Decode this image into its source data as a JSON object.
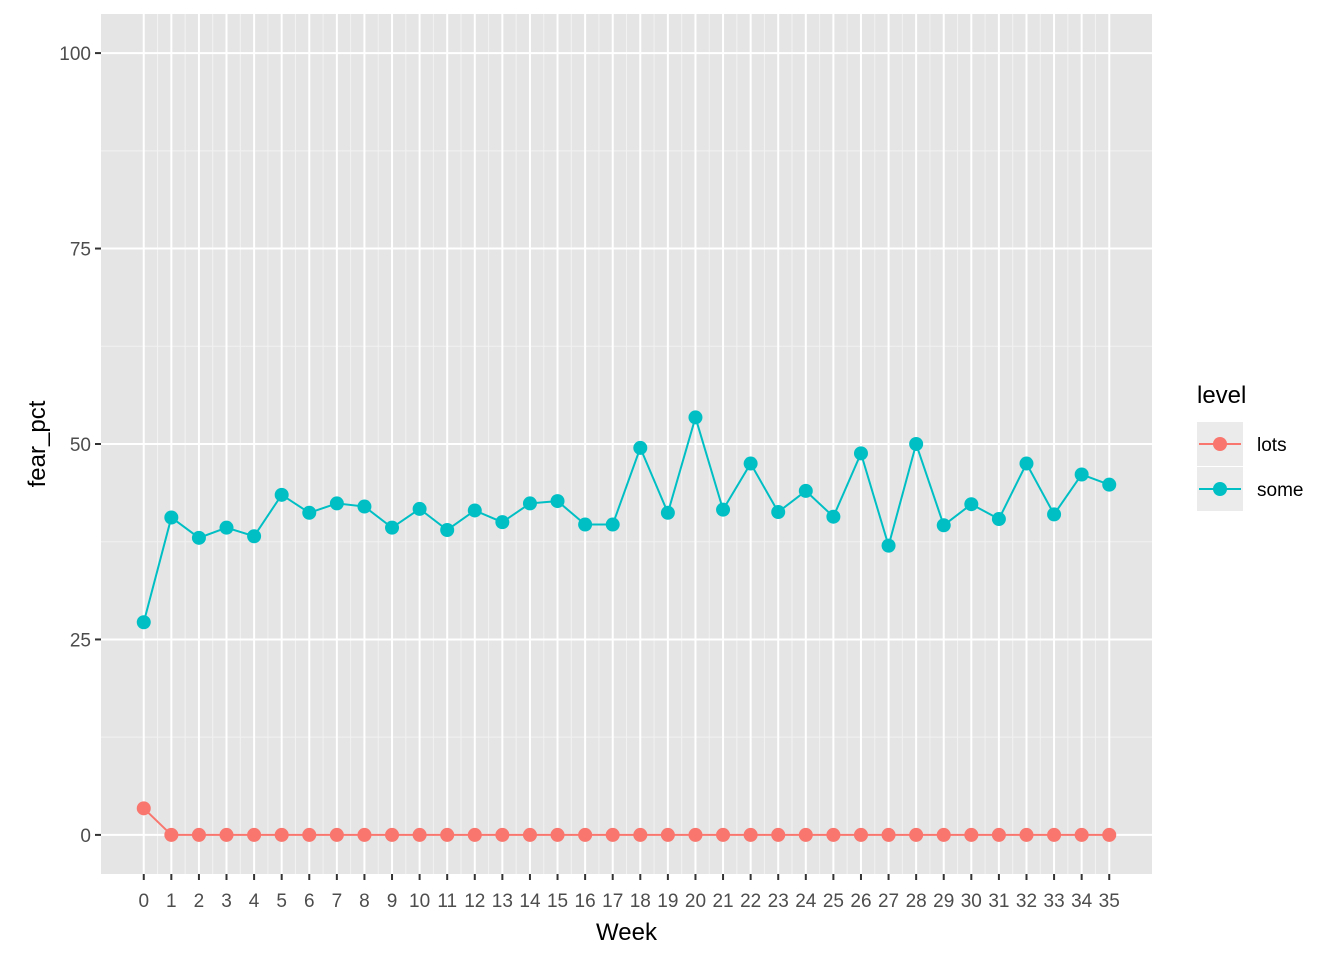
{
  "chart_data": {
    "type": "line",
    "title": "",
    "xlabel": "Week",
    "ylabel": "fear_pct",
    "x": [
      0,
      1,
      2,
      3,
      4,
      5,
      6,
      7,
      8,
      9,
      10,
      11,
      12,
      13,
      14,
      15,
      16,
      17,
      18,
      19,
      20,
      21,
      22,
      23,
      24,
      25,
      26,
      27,
      28,
      29,
      30,
      31,
      32,
      33,
      34,
      35
    ],
    "x_tick_labels": [
      "0",
      "1",
      "2",
      "3",
      "4",
      "5",
      "6",
      "7",
      "8",
      "9",
      "10",
      "11",
      "12",
      "13",
      "14",
      "15",
      "16",
      "17",
      "18",
      "19",
      "20",
      "21",
      "22",
      "23",
      "24",
      "25",
      "26",
      "27",
      "28",
      "29",
      "30",
      "31",
      "32",
      "33",
      "34",
      "35"
    ],
    "ylim": [
      -5,
      105
    ],
    "y_ticks": [
      0,
      25,
      50,
      75,
      100
    ],
    "y_tick_labels": [
      "0",
      "25",
      "50",
      "75",
      "100"
    ],
    "grid": true,
    "background": "#e5e5e5",
    "legend": {
      "title": "level",
      "position": "right"
    },
    "series": [
      {
        "name": "lots",
        "color": "#F8766D",
        "values": [
          3.4,
          0,
          0,
          0,
          0,
          0,
          0,
          0,
          0,
          0,
          0,
          0,
          0,
          0,
          0,
          0,
          0,
          0,
          0,
          0,
          0,
          0,
          0,
          0,
          0,
          0,
          0,
          0,
          0,
          0,
          0,
          0,
          0,
          0,
          0,
          0
        ]
      },
      {
        "name": "some",
        "color": "#00BFC4",
        "values": [
          27.2,
          40.6,
          38.0,
          39.3,
          38.2,
          43.5,
          41.2,
          42.4,
          42.0,
          39.3,
          41.7,
          39.0,
          41.5,
          40.0,
          42.4,
          42.7,
          39.7,
          39.7,
          49.5,
          41.2,
          53.4,
          41.6,
          47.5,
          41.3,
          44.0,
          40.7,
          48.8,
          37.0,
          50.0,
          39.6,
          42.3,
          40.4,
          47.5,
          41.0,
          46.1,
          44.8
        ]
      }
    ]
  }
}
